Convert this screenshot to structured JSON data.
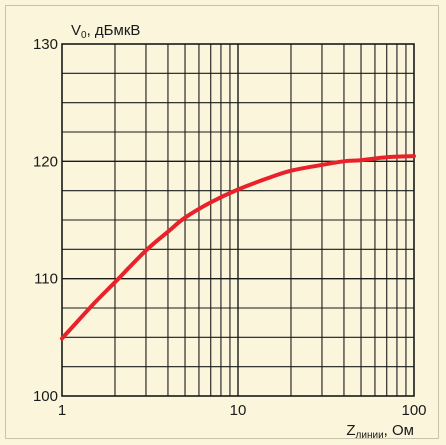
{
  "chart_data": {
    "type": "line",
    "ylabel": "V",
    "ylabel_sub": "0",
    "ylabel_unit": ", дБмкВ",
    "xlabel": "Z",
    "xlabel_sub": "линии",
    "xlabel_unit": ", Ом",
    "x_scale": "log",
    "xlim": [
      1,
      100
    ],
    "ylim": [
      100,
      130
    ],
    "x_ticks": [
      1,
      10,
      100
    ],
    "x_tick_labels": [
      "1",
      "10",
      "100"
    ],
    "y_ticks": [
      100,
      110,
      120,
      130
    ],
    "y_tick_labels": [
      "100",
      "110",
      "120",
      "130"
    ],
    "grid": true,
    "line_color": "#e8212a",
    "background": "#fbf5dc",
    "series": [
      {
        "x": [
          1,
          1.5,
          2,
          3,
          4,
          5,
          7,
          10,
          15,
          20,
          30,
          40,
          50,
          70,
          100
        ],
        "y": [
          104.9,
          107.8,
          109.7,
          112.4,
          114.0,
          115.2,
          116.5,
          117.6,
          118.6,
          119.2,
          119.7,
          120.0,
          120.1,
          120.35,
          120.45
        ]
      }
    ]
  }
}
